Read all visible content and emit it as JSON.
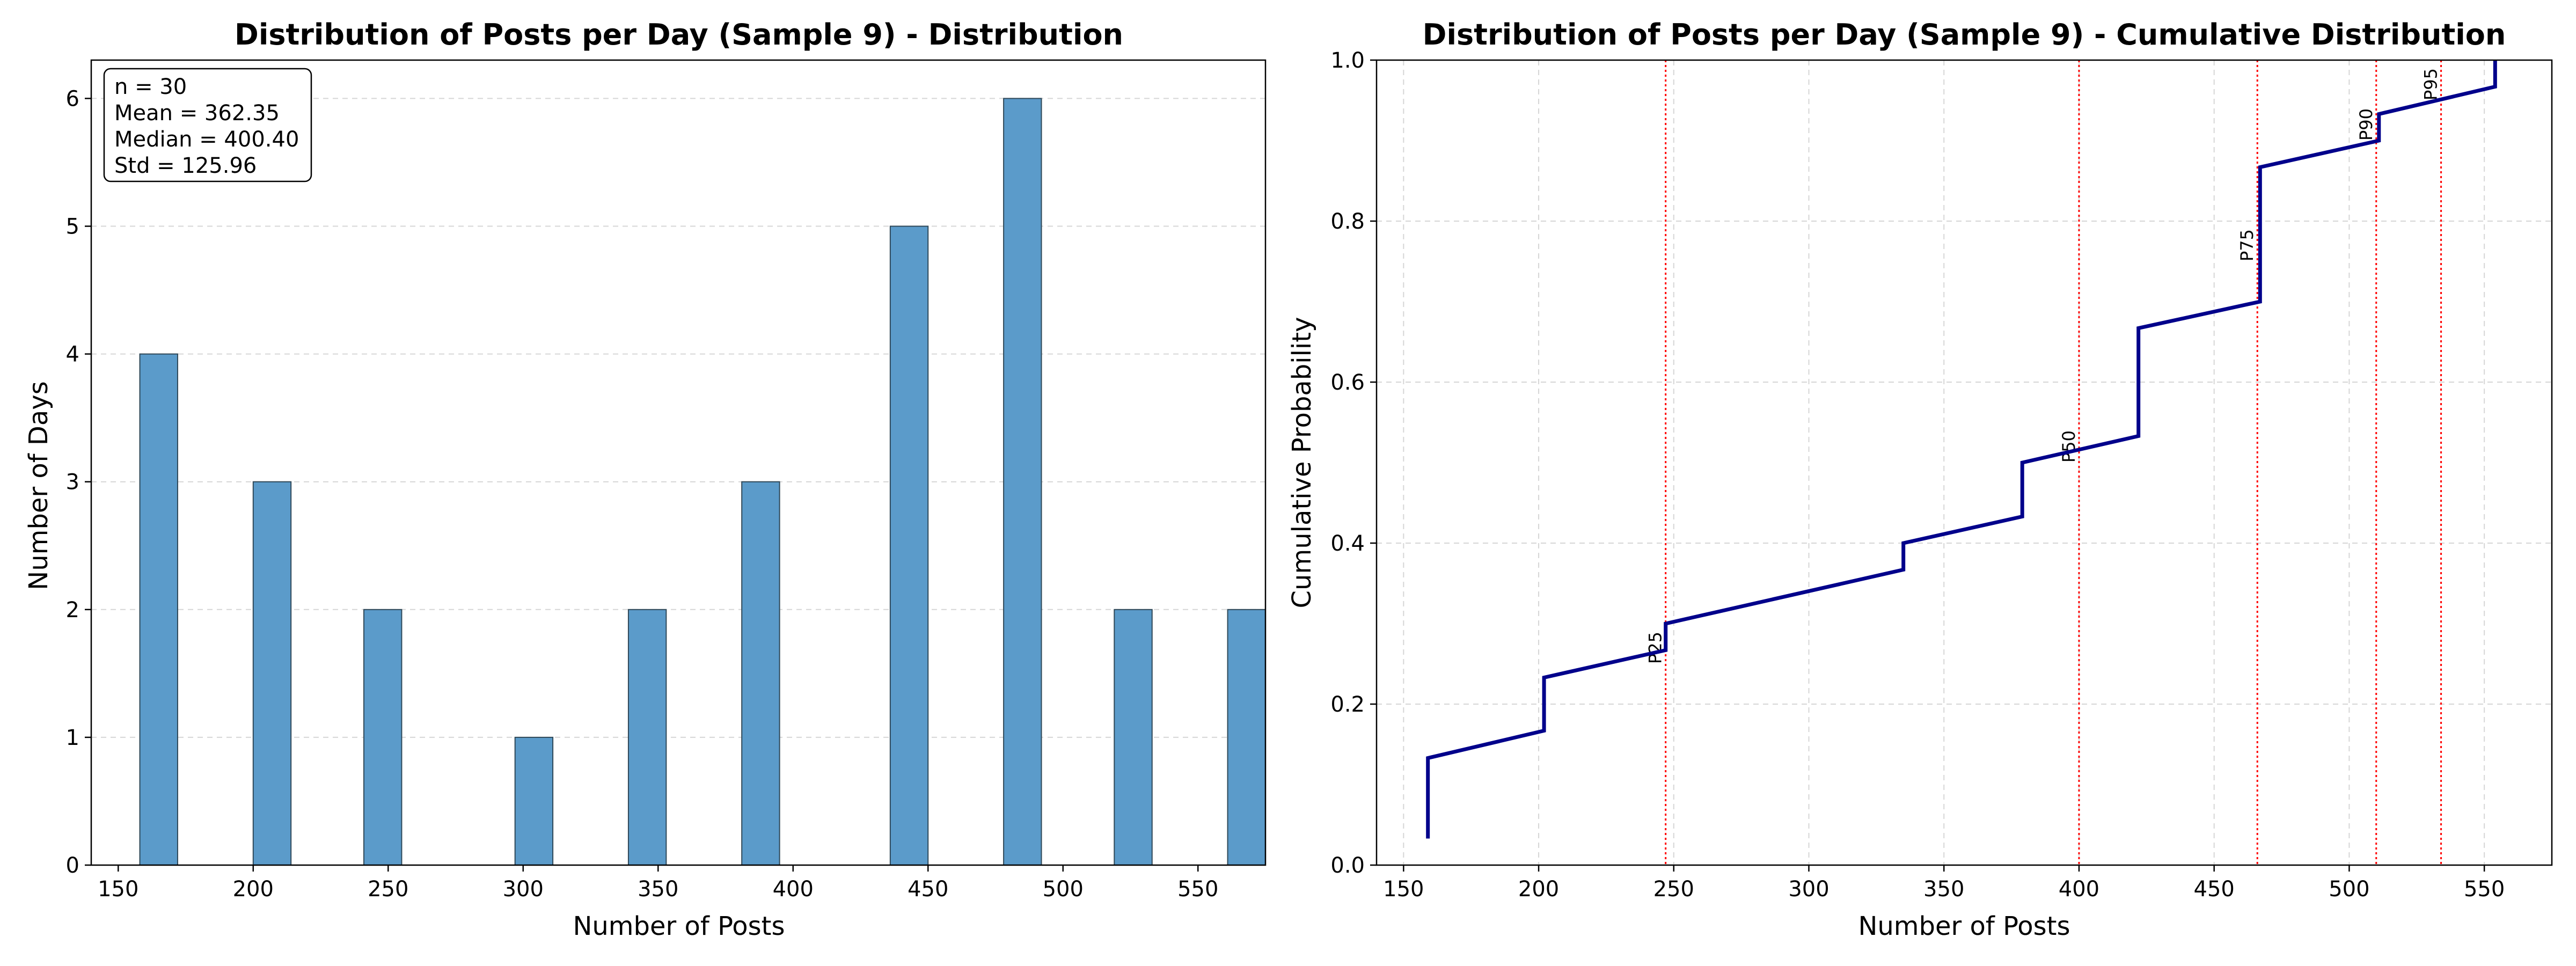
{
  "chart_data": [
    {
      "type": "bar",
      "title": "Distribution of Posts per Day (Sample 9) - Distribution",
      "xlabel": "Number of Posts",
      "ylabel": "Number of Days",
      "xlim": [
        140,
        575
      ],
      "ylim": [
        0,
        6.3
      ],
      "xticks": [
        150,
        200,
        250,
        300,
        350,
        400,
        450,
        500,
        550
      ],
      "yticks": [
        0,
        1,
        2,
        3,
        4,
        5,
        6
      ],
      "grid": "y",
      "bar_color": "#5b9bca",
      "bars": [
        {
          "x0": 158,
          "x1": 172,
          "count": 4
        },
        {
          "x0": 200,
          "x1": 214,
          "count": 3
        },
        {
          "x0": 241,
          "x1": 255,
          "count": 2
        },
        {
          "x0": 297,
          "x1": 311,
          "count": 1
        },
        {
          "x0": 339,
          "x1": 353,
          "count": 2
        },
        {
          "x0": 381,
          "x1": 395,
          "count": 3
        },
        {
          "x0": 436,
          "x1": 450,
          "count": 5
        },
        {
          "x0": 478,
          "x1": 492,
          "count": 6
        },
        {
          "x0": 519,
          "x1": 533,
          "count": 2
        },
        {
          "x0": 561,
          "x1": 575,
          "count": 2
        }
      ],
      "stats_box": [
        "n = 30",
        "Mean = 362.35",
        "Median = 400.40",
        "Std = 125.96"
      ],
      "stats_box_location": "top-left"
    },
    {
      "type": "line",
      "title": "Distribution of Posts per Day (Sample 9) - Cumulative Distribution",
      "xlabel": "Number of Posts",
      "ylabel": "Cumulative Probability",
      "xlim": [
        140,
        575
      ],
      "ylim": [
        0.0,
        1.0
      ],
      "xticks": [
        150,
        200,
        250,
        300,
        350,
        400,
        450,
        500,
        550
      ],
      "yticks": [
        0.0,
        0.2,
        0.4,
        0.6,
        0.8,
        1.0
      ],
      "yticklabels": [
        "0.0",
        "0.2",
        "0.4",
        "0.6",
        "0.8",
        "1.0"
      ],
      "grid": "both",
      "line_color": "#00008b",
      "series": [
        {
          "points": [
            [
              159,
              0.033
            ],
            [
              159,
              0.133
            ],
            [
              202,
              0.167
            ],
            [
              202,
              0.233
            ],
            [
              247,
              0.267
            ],
            [
              247,
              0.3
            ],
            [
              335,
              0.367
            ],
            [
              335,
              0.4
            ],
            [
              379,
              0.433
            ],
            [
              379,
              0.5
            ],
            [
              422,
              0.533
            ],
            [
              422,
              0.667
            ],
            [
              467,
              0.7
            ],
            [
              467,
              0.867
            ],
            [
              511,
              0.9
            ],
            [
              511,
              0.933
            ],
            [
              554,
              0.967
            ],
            [
              554,
              1.0
            ]
          ]
        }
      ],
      "percentiles": [
        {
          "label": "P25",
          "x": 247,
          "label_y": 0.27
        },
        {
          "label": "P50",
          "x": 400,
          "label_y": 0.52
        },
        {
          "label": "P75",
          "x": 466,
          "label_y": 0.77
        },
        {
          "label": "P90",
          "x": 510,
          "label_y": 0.92
        },
        {
          "label": "P95",
          "x": 534,
          "label_y": 0.97
        }
      ],
      "percentile_color": "#ff0000"
    }
  ]
}
